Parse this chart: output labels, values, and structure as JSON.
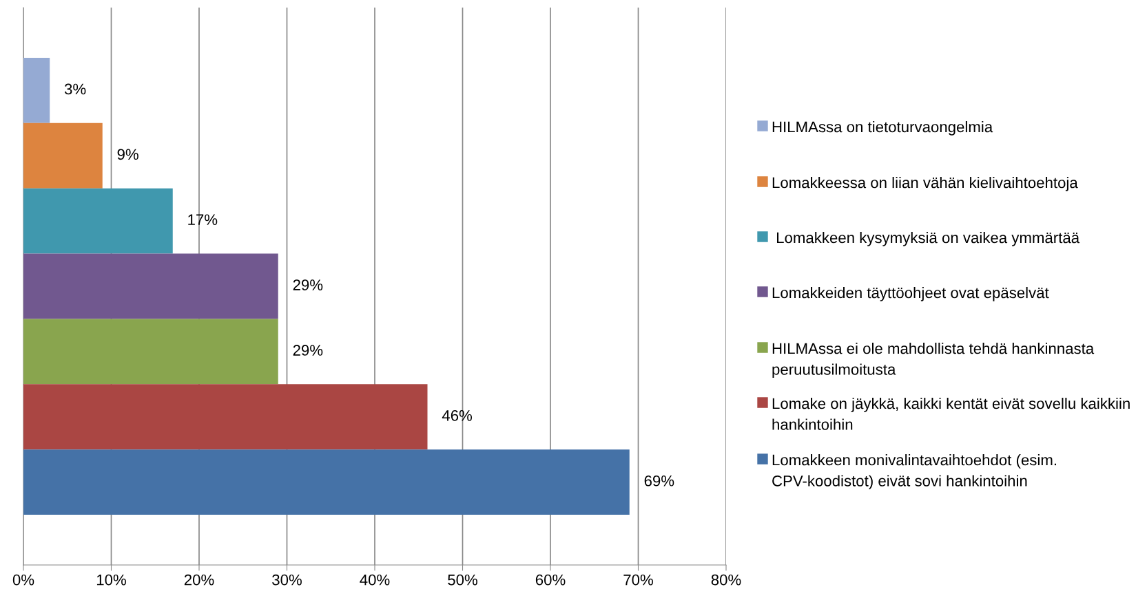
{
  "chart_data": {
    "type": "bar",
    "orientation": "horizontal",
    "categories": [
      null
    ],
    "series": [
      {
        "name": "HILMAssa on tietoturvaongelmia",
        "color": "#95aad3",
        "values": [
          3
        ],
        "value_labels": [
          "3%"
        ]
      },
      {
        "name": "Lomakkeessa on liian vähän kielivaihtoehtoja",
        "color": "#dd843f",
        "values": [
          9
        ],
        "value_labels": [
          "9%"
        ]
      },
      {
        "name": " Lomakkeen kysymyksiä on vaikea ymmärtää",
        "color": "#4098ae",
        "values": [
          17
        ],
        "value_labels": [
          "17%"
        ]
      },
      {
        "name": "Lomakkeiden täyttöohjeet ovat epäselvät",
        "color": "#71588f",
        "values": [
          29
        ],
        "value_labels": [
          "29%"
        ]
      },
      {
        "name": "HILMAssa ei ole mahdollista tehdä hankinnasta peruutusilmoitusta",
        "color": "#89a54e",
        "values": [
          29
        ],
        "value_labels": [
          "29%"
        ]
      },
      {
        "name": "Lomake on jäykkä, kaikki kentät eivät sovellu kaikkiin hankintoihin",
        "color": "#aa4643",
        "values": [
          46
        ],
        "value_labels": [
          "46%"
        ]
      },
      {
        "name": "Lomakkeen monivalintavaihtoehdot (esim. CPV-koodistot) eivät sovi hankintoihin",
        "color": "#4572a7",
        "values": [
          69
        ],
        "value_labels": [
          "69%"
        ]
      }
    ],
    "xlim": [
      0,
      80
    ],
    "xticks": [
      {
        "value": 0,
        "label": "0%"
      },
      {
        "value": 10,
        "label": "10%"
      },
      {
        "value": 20,
        "label": "20%"
      },
      {
        "value": 30,
        "label": "30%"
      },
      {
        "value": 40,
        "label": "40%"
      },
      {
        "value": 50,
        "label": "50%"
      },
      {
        "value": 60,
        "label": "60%"
      },
      {
        "value": 70,
        "label": "70%"
      },
      {
        "value": 80,
        "label": "80%"
      }
    ],
    "grid": "x",
    "legend": "right"
  }
}
